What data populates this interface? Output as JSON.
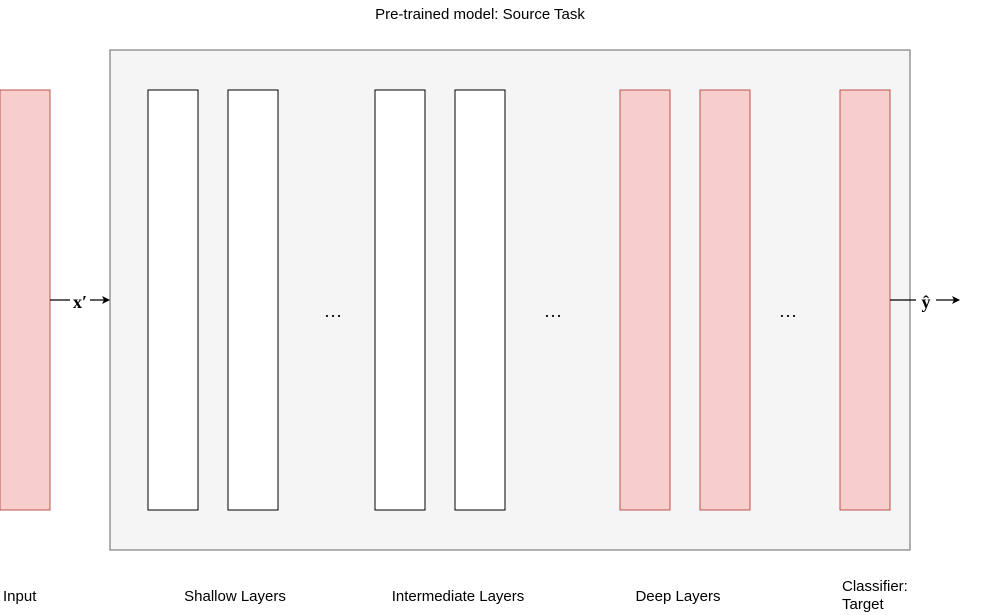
{
  "title": "Pre-trained model: Source Task",
  "colors": {
    "container_fill": "#f5f5f5",
    "container_stroke": "#666666",
    "highlight_fill": "#f8cecc",
    "highlight_stroke": "#b85450",
    "plain_fill": "#ffffff",
    "plain_stroke": "#000000"
  },
  "input_symbol": "x′",
  "output_symbol": "ŷ",
  "ellipsis": "…",
  "labels": {
    "input": "Input",
    "shallow": "Shallow Layers",
    "intermediate": "Intermediate Layers",
    "deep": "Deep Layers",
    "classifier_line1": "Classifier:",
    "classifier_line2": "Target"
  }
}
